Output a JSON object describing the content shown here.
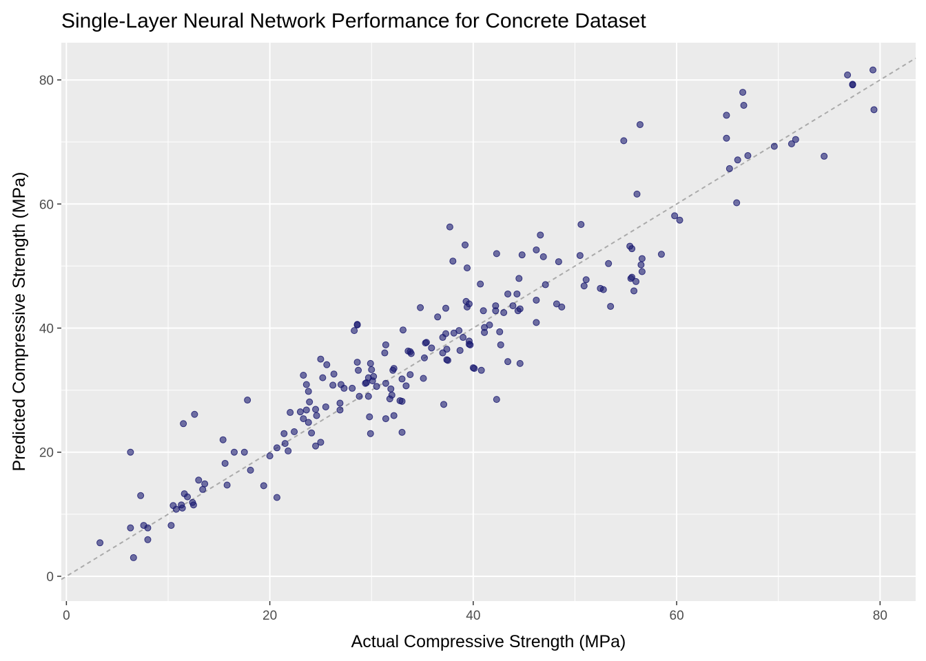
{
  "chart_data": {
    "type": "scatter",
    "title": "Single-Layer Neural Network Performance for Concrete Dataset",
    "xlabel": "Actual Compressive Strength (MPa)",
    "ylabel": "Predicted Compressive Strength (MPa)",
    "xlim": [
      -0.5,
      83.5
    ],
    "ylim": [
      -4,
      86
    ],
    "xticks": [
      "0",
      "20",
      "40",
      "60",
      "80"
    ],
    "yticks": [
      "0",
      "20",
      "40",
      "60",
      "80"
    ],
    "grid": true,
    "reference_line": {
      "style": "dashed",
      "slope": 1,
      "intercept": 0,
      "color": "#aaaaaa"
    },
    "colors": {
      "panel": "#ebebeb",
      "grid": "#ffffff",
      "point_fill": "#191970",
      "point_stroke": "#191970"
    },
    "points": [
      [
        3.3,
        5.4
      ],
      [
        6.3,
        20.0
      ],
      [
        6.3,
        7.8
      ],
      [
        6.6,
        3.0
      ],
      [
        7.3,
        13.0
      ],
      [
        7.6,
        8.2
      ],
      [
        8.0,
        7.8
      ],
      [
        8.0,
        5.9
      ],
      [
        10.3,
        8.2
      ],
      [
        10.5,
        11.4
      ],
      [
        10.8,
        10.8
      ],
      [
        11.3,
        11.5
      ],
      [
        11.4,
        11.0
      ],
      [
        11.6,
        13.3
      ],
      [
        11.5,
        24.6
      ],
      [
        11.9,
        12.8
      ],
      [
        12.4,
        11.9
      ],
      [
        12.5,
        11.5
      ],
      [
        12.6,
        26.1
      ],
      [
        13.0,
        15.5
      ],
      [
        13.4,
        14.0
      ],
      [
        13.6,
        14.9
      ],
      [
        15.4,
        22.0
      ],
      [
        15.6,
        18.2
      ],
      [
        15.8,
        14.7
      ],
      [
        16.5,
        20.0
      ],
      [
        17.5,
        20.0
      ],
      [
        17.8,
        28.4
      ],
      [
        18.1,
        17.1
      ],
      [
        19.4,
        14.6
      ],
      [
        20.0,
        19.4
      ],
      [
        20.7,
        20.7
      ],
      [
        20.7,
        12.7
      ],
      [
        21.4,
        23.0
      ],
      [
        21.5,
        21.4
      ],
      [
        21.8,
        20.2
      ],
      [
        22.0,
        26.4
      ],
      [
        22.4,
        23.3
      ],
      [
        23.0,
        26.5
      ],
      [
        23.3,
        32.4
      ],
      [
        23.3,
        25.4
      ],
      [
        23.6,
        30.9
      ],
      [
        23.6,
        26.8
      ],
      [
        23.8,
        29.8
      ],
      [
        23.9,
        28.1
      ],
      [
        23.8,
        24.8
      ],
      [
        24.1,
        23.1
      ],
      [
        24.5,
        26.9
      ],
      [
        24.5,
        21.0
      ],
      [
        24.6,
        25.9
      ],
      [
        25.0,
        21.6
      ],
      [
        25.0,
        35.0
      ],
      [
        25.2,
        32.0
      ],
      [
        25.5,
        27.3
      ],
      [
        25.6,
        34.1
      ],
      [
        26.2,
        30.8
      ],
      [
        26.3,
        32.6
      ],
      [
        26.9,
        27.9
      ],
      [
        26.9,
        26.8
      ],
      [
        27.0,
        30.9
      ],
      [
        27.3,
        30.3
      ],
      [
        28.1,
        30.3
      ],
      [
        28.3,
        39.6
      ],
      [
        28.6,
        40.5
      ],
      [
        28.6,
        40.6
      ],
      [
        28.6,
        34.5
      ],
      [
        28.7,
        33.2
      ],
      [
        28.8,
        29.0
      ],
      [
        29.4,
        31.1
      ],
      [
        29.5,
        31.2
      ],
      [
        29.7,
        32.0
      ],
      [
        29.7,
        29.0
      ],
      [
        29.8,
        25.7
      ],
      [
        29.9,
        34.3
      ],
      [
        29.9,
        23.0
      ],
      [
        30.0,
        33.3
      ],
      [
        30.1,
        31.5
      ],
      [
        30.2,
        32.2
      ],
      [
        30.5,
        30.6
      ],
      [
        31.3,
        36.0
      ],
      [
        31.4,
        37.3
      ],
      [
        31.4,
        31.1
      ],
      [
        31.4,
        25.4
      ],
      [
        31.8,
        28.6
      ],
      [
        31.9,
        30.2
      ],
      [
        32.0,
        29.2
      ],
      [
        32.1,
        33.2
      ],
      [
        32.2,
        33.5
      ],
      [
        32.2,
        25.9
      ],
      [
        32.8,
        28.3
      ],
      [
        33.0,
        31.8
      ],
      [
        33.0,
        23.2
      ],
      [
        33.0,
        28.2
      ],
      [
        33.1,
        39.7
      ],
      [
        33.4,
        30.7
      ],
      [
        33.6,
        36.3
      ],
      [
        33.8,
        32.5
      ],
      [
        33.8,
        36.2
      ],
      [
        33.9,
        35.9
      ],
      [
        34.8,
        43.3
      ],
      [
        35.1,
        31.9
      ],
      [
        35.2,
        35.2
      ],
      [
        35.3,
        37.6
      ],
      [
        35.4,
        37.7
      ],
      [
        35.9,
        36.8
      ],
      [
        36.5,
        41.8
      ],
      [
        37.0,
        38.5
      ],
      [
        37.0,
        36.0
      ],
      [
        37.1,
        27.7
      ],
      [
        37.3,
        39.1
      ],
      [
        37.3,
        43.2
      ],
      [
        37.4,
        36.6
      ],
      [
        37.4,
        34.9
      ],
      [
        37.5,
        34.8
      ],
      [
        37.7,
        56.3
      ],
      [
        38.0,
        50.8
      ],
      [
        38.1,
        39.2
      ],
      [
        38.6,
        39.6
      ],
      [
        38.7,
        36.4
      ],
      [
        39.0,
        38.5
      ],
      [
        39.2,
        53.4
      ],
      [
        39.3,
        44.3
      ],
      [
        39.4,
        43.4
      ],
      [
        39.4,
        49.7
      ],
      [
        39.6,
        43.9
      ],
      [
        39.6,
        37.9
      ],
      [
        39.6,
        37.4
      ],
      [
        39.7,
        37.3
      ],
      [
        40.0,
        33.6
      ],
      [
        40.1,
        33.5
      ],
      [
        40.7,
        47.1
      ],
      [
        40.8,
        33.2
      ],
      [
        41.0,
        42.8
      ],
      [
        41.1,
        40.1
      ],
      [
        41.1,
        39.3
      ],
      [
        41.6,
        40.5
      ],
      [
        42.2,
        42.8
      ],
      [
        42.2,
        43.6
      ],
      [
        42.3,
        52.0
      ],
      [
        42.3,
        28.5
      ],
      [
        42.6,
        39.4
      ],
      [
        42.7,
        37.3
      ],
      [
        43.0,
        42.5
      ],
      [
        43.4,
        45.5
      ],
      [
        43.4,
        34.6
      ],
      [
        43.9,
        43.6
      ],
      [
        44.3,
        45.5
      ],
      [
        44.4,
        42.8
      ],
      [
        44.5,
        48.0
      ],
      [
        44.6,
        43.1
      ],
      [
        44.6,
        34.3
      ],
      [
        44.8,
        51.8
      ],
      [
        46.2,
        52.6
      ],
      [
        46.2,
        44.5
      ],
      [
        46.2,
        40.9
      ],
      [
        46.6,
        55.0
      ],
      [
        46.9,
        51.5
      ],
      [
        47.1,
        47.0
      ],
      [
        48.2,
        43.9
      ],
      [
        48.4,
        50.7
      ],
      [
        48.7,
        43.4
      ],
      [
        50.5,
        51.7
      ],
      [
        50.6,
        56.7
      ],
      [
        50.9,
        46.8
      ],
      [
        51.1,
        47.8
      ],
      [
        52.5,
        46.4
      ],
      [
        52.8,
        46.2
      ],
      [
        53.3,
        50.4
      ],
      [
        53.5,
        43.5
      ],
      [
        54.8,
        70.2
      ],
      [
        55.4,
        53.2
      ],
      [
        55.5,
        48.0
      ],
      [
        55.6,
        48.2
      ],
      [
        55.6,
        52.8
      ],
      [
        55.8,
        46.0
      ],
      [
        56.0,
        47.5
      ],
      [
        56.1,
        61.6
      ],
      [
        56.4,
        72.8
      ],
      [
        56.5,
        50.2
      ],
      [
        56.6,
        49.1
      ],
      [
        56.6,
        51.2
      ],
      [
        58.5,
        51.9
      ],
      [
        59.8,
        58.1
      ],
      [
        60.3,
        57.4
      ],
      [
        64.9,
        74.3
      ],
      [
        64.9,
        70.6
      ],
      [
        65.2,
        65.7
      ],
      [
        65.9,
        60.2
      ],
      [
        66.0,
        67.1
      ],
      [
        66.5,
        78.0
      ],
      [
        66.6,
        75.9
      ],
      [
        67.0,
        67.8
      ],
      [
        69.6,
        69.3
      ],
      [
        71.3,
        69.7
      ],
      [
        71.7,
        70.4
      ],
      [
        74.5,
        67.7
      ],
      [
        76.8,
        80.8
      ],
      [
        77.3,
        79.2
      ],
      [
        77.3,
        79.3
      ],
      [
        79.3,
        81.6
      ],
      [
        79.4,
        75.2
      ]
    ]
  }
}
